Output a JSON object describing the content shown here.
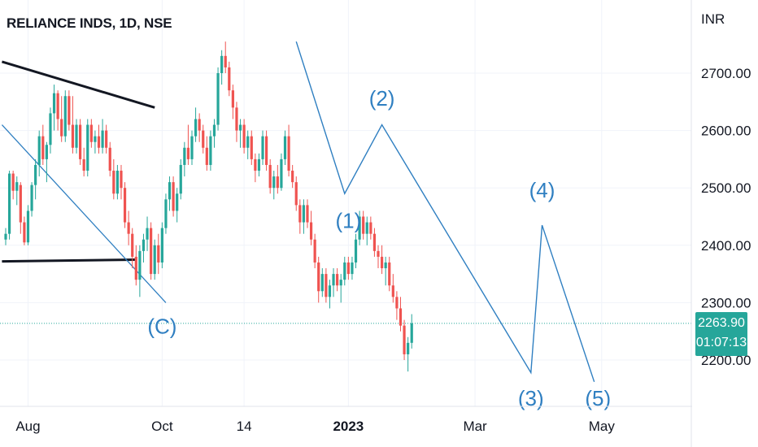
{
  "header": {
    "title": "RELIANCE INDS, 1D, NSE"
  },
  "price_axis": {
    "unit": "INR"
  },
  "price_badge": {
    "last_price": "2263.90",
    "countdown": "01:07:13"
  },
  "colors": {
    "up": "#26a69a",
    "down": "#ef5350",
    "wave": "#2f7fc1",
    "trend": "#131722",
    "last_price_line": "#26a69a"
  },
  "chart_data": {
    "type": "candlestick",
    "title": "RELIANCE INDS, 1D, NSE",
    "ylabel": "INR",
    "ylim": [
      2120,
      2770
    ],
    "yticks": [
      2200,
      2300,
      2400,
      2500,
      2600,
      2700
    ],
    "ytick_labels": [
      "2200.00",
      "2300.00",
      "2400.00",
      "2500.00",
      "2600.00",
      "2700.00"
    ],
    "xlim": [
      0,
      178
    ],
    "xticks": [
      {
        "label": "Aug",
        "x": 6,
        "bold": false
      },
      {
        "label": "Oct",
        "x": 42,
        "bold": false
      },
      {
        "label": "14",
        "x": 64,
        "bold": false
      },
      {
        "label": "2023",
        "x": 92,
        "bold": true
      },
      {
        "label": "Mar",
        "x": 126,
        "bold": false
      },
      {
        "label": "May",
        "x": 160,
        "bold": false
      }
    ],
    "last_price": 2263.9,
    "candles": [
      [
        2410,
        2430,
        2400,
        2420
      ],
      [
        2420,
        2530,
        2410,
        2525
      ],
      [
        2525,
        2530,
        2480,
        2495
      ],
      [
        2495,
        2520,
        2470,
        2510
      ],
      [
        2505,
        2510,
        2420,
        2440
      ],
      [
        2440,
        2450,
        2400,
        2405
      ],
      [
        2405,
        2470,
        2400,
        2460
      ],
      [
        2460,
        2510,
        2450,
        2505
      ],
      [
        2505,
        2550,
        2480,
        2540
      ],
      [
        2540,
        2600,
        2520,
        2590
      ],
      [
        2590,
        2610,
        2540,
        2550
      ],
      [
        2550,
        2580,
        2510,
        2575
      ],
      [
        2575,
        2640,
        2560,
        2630
      ],
      [
        2630,
        2680,
        2600,
        2665
      ],
      [
        2665,
        2670,
        2600,
        2620
      ],
      [
        2620,
        2660,
        2580,
        2590
      ],
      [
        2590,
        2670,
        2580,
        2660
      ],
      [
        2660,
        2670,
        2600,
        2610
      ],
      [
        2610,
        2660,
        2560,
        2570
      ],
      [
        2570,
        2620,
        2560,
        2610
      ],
      [
        2610,
        2620,
        2540,
        2550
      ],
      [
        2550,
        2570,
        2520,
        2530
      ],
      [
        2530,
        2620,
        2520,
        2610
      ],
      [
        2610,
        2620,
        2570,
        2580
      ],
      [
        2580,
        2600,
        2560,
        2590
      ],
      [
        2590,
        2610,
        2560,
        2570
      ],
      [
        2570,
        2620,
        2560,
        2600
      ],
      [
        2600,
        2610,
        2560,
        2570
      ],
      [
        2570,
        2580,
        2520,
        2530
      ],
      [
        2530,
        2550,
        2480,
        2490
      ],
      [
        2490,
        2540,
        2480,
        2530
      ],
      [
        2530,
        2540,
        2480,
        2500
      ],
      [
        2500,
        2510,
        2430,
        2440
      ],
      [
        2440,
        2460,
        2400,
        2420
      ],
      [
        2420,
        2430,
        2360,
        2380
      ],
      [
        2380,
        2400,
        2330,
        2340
      ],
      [
        2340,
        2400,
        2310,
        2390
      ],
      [
        2390,
        2420,
        2370,
        2410
      ],
      [
        2410,
        2450,
        2390,
        2430
      ],
      [
        2430,
        2440,
        2340,
        2350
      ],
      [
        2350,
        2410,
        2340,
        2400
      ],
      [
        2400,
        2420,
        2350,
        2370
      ],
      [
        2370,
        2440,
        2360,
        2430
      ],
      [
        2430,
        2490,
        2420,
        2480
      ],
      [
        2480,
        2520,
        2460,
        2510
      ],
      [
        2510,
        2520,
        2450,
        2460
      ],
      [
        2460,
        2500,
        2440,
        2490
      ],
      [
        2490,
        2550,
        2480,
        2540
      ],
      [
        2540,
        2580,
        2520,
        2570
      ],
      [
        2570,
        2610,
        2540,
        2550
      ],
      [
        2550,
        2600,
        2540,
        2590
      ],
      [
        2590,
        2640,
        2580,
        2620
      ],
      [
        2620,
        2630,
        2580,
        2600
      ],
      [
        2600,
        2610,
        2560,
        2570
      ],
      [
        2570,
        2590,
        2530,
        2540
      ],
      [
        2540,
        2600,
        2530,
        2590
      ],
      [
        2590,
        2620,
        2570,
        2610
      ],
      [
        2610,
        2710,
        2600,
        2700
      ],
      [
        2700,
        2740,
        2680,
        2730
      ],
      [
        2730,
        2755,
        2700,
        2710
      ],
      [
        2710,
        2720,
        2660,
        2670
      ],
      [
        2670,
        2680,
        2620,
        2640
      ],
      [
        2640,
        2650,
        2580,
        2600
      ],
      [
        2600,
        2620,
        2570,
        2610
      ],
      [
        2610,
        2620,
        2560,
        2570
      ],
      [
        2570,
        2600,
        2550,
        2590
      ],
      [
        2590,
        2600,
        2540,
        2550
      ],
      [
        2550,
        2560,
        2510,
        2530
      ],
      [
        2530,
        2560,
        2520,
        2550
      ],
      [
        2550,
        2600,
        2540,
        2590
      ],
      [
        2590,
        2600,
        2530,
        2540
      ],
      [
        2540,
        2550,
        2490,
        2500
      ],
      [
        2500,
        2530,
        2480,
        2520
      ],
      [
        2520,
        2540,
        2490,
        2500
      ],
      [
        2500,
        2560,
        2495,
        2550
      ],
      [
        2550,
        2600,
        2540,
        2590
      ],
      [
        2590,
        2610,
        2520,
        2530
      ],
      [
        2530,
        2540,
        2500,
        2510
      ],
      [
        2510,
        2520,
        2460,
        2470
      ],
      [
        2470,
        2480,
        2420,
        2440
      ],
      [
        2440,
        2480,
        2420,
        2470
      ],
      [
        2470,
        2480,
        2430,
        2440
      ],
      [
        2440,
        2460,
        2400,
        2410
      ],
      [
        2410,
        2420,
        2360,
        2370
      ],
      [
        2370,
        2380,
        2300,
        2320
      ],
      [
        2320,
        2360,
        2310,
        2350
      ],
      [
        2350,
        2360,
        2300,
        2310
      ],
      [
        2310,
        2340,
        2290,
        2330
      ],
      [
        2330,
        2360,
        2310,
        2350
      ],
      [
        2350,
        2360,
        2320,
        2330
      ],
      [
        2330,
        2350,
        2300,
        2340
      ],
      [
        2340,
        2380,
        2330,
        2370
      ],
      [
        2370,
        2380,
        2340,
        2350
      ],
      [
        2350,
        2380,
        2340,
        2370
      ],
      [
        2370,
        2420,
        2360,
        2410
      ],
      [
        2410,
        2460,
        2400,
        2450
      ],
      [
        2450,
        2460,
        2410,
        2420
      ],
      [
        2420,
        2450,
        2400,
        2440
      ],
      [
        2440,
        2450,
        2410,
        2420
      ],
      [
        2420,
        2430,
        2380,
        2390
      ],
      [
        2390,
        2400,
        2360,
        2380
      ],
      [
        2380,
        2400,
        2350,
        2360
      ],
      [
        2360,
        2380,
        2330,
        2370
      ],
      [
        2370,
        2380,
        2320,
        2330
      ],
      [
        2330,
        2350,
        2300,
        2310
      ],
      [
        2310,
        2320,
        2270,
        2290
      ],
      [
        2290,
        2310,
        2250,
        2260
      ],
      [
        2260,
        2270,
        2200,
        2210
      ],
      [
        2210,
        2240,
        2180,
        2230
      ],
      [
        2230,
        2280,
        2220,
        2264
      ]
    ],
    "elliott_wave_labels": [
      {
        "label": "(C)",
        "x": 42,
        "y": 2246
      },
      {
        "label": "(1)",
        "x": 92,
        "y": 2430
      },
      {
        "label": "(2)",
        "x": 101,
        "y": 2643
      },
      {
        "label": "(4)",
        "x": 144,
        "y": 2483
      },
      {
        "label": "(3)",
        "x": 141,
        "y": 2121
      },
      {
        "label": "(5)",
        "x": 159,
        "y": 2121
      }
    ],
    "elliott_wave_path": [
      {
        "x": 78,
        "y": 2755
      },
      {
        "x": 91,
        "y": 2490
      },
      {
        "x": 101,
        "y": 2610
      },
      {
        "x": 141,
        "y": 2178
      },
      {
        "x": 144,
        "y": 2435
      },
      {
        "x": 158,
        "y": 2162
      }
    ],
    "trendlines": [
      {
        "color": "trend",
        "points": [
          {
            "x": -1,
            "y": 2720
          },
          {
            "x": 40,
            "y": 2640
          }
        ]
      },
      {
        "color": "trend",
        "points": [
          {
            "x": -1,
            "y": 2372
          },
          {
            "x": 35,
            "y": 2375
          }
        ]
      },
      {
        "color": "wave",
        "points": [
          {
            "x": -1,
            "y": 2610
          },
          {
            "x": 43,
            "y": 2300
          }
        ]
      }
    ]
  }
}
